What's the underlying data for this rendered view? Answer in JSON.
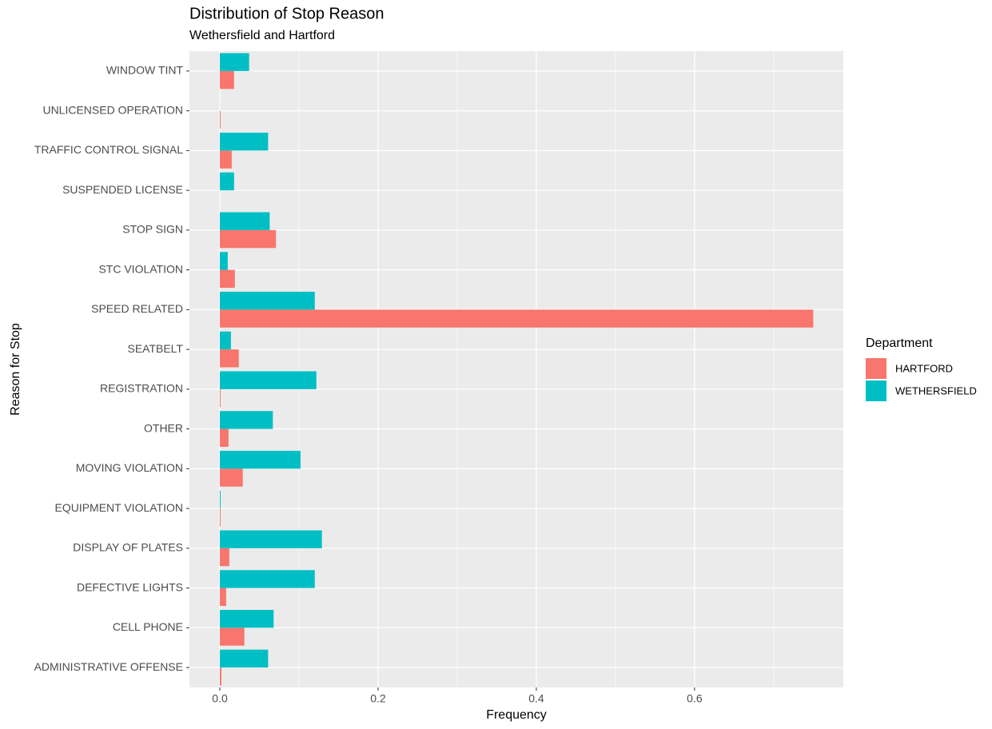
{
  "chart_data": {
    "type": "hbar",
    "title": "Distribution of Stop Reason",
    "subtitle": "Wethersfield and Hartford",
    "x_label": "Frequency",
    "y_label": "Reason for Stop",
    "legend_title": "Department",
    "legend_position": "right",
    "grid": true,
    "categories": [
      "WINDOW TINT",
      "UNLICENSED OPERATION",
      "TRAFFIC CONTROL SIGNAL",
      "SUSPENDED LICENSE",
      "STOP SIGN",
      "STC VIOLATION",
      "SPEED RELATED",
      "SEATBELT",
      "REGISTRATION",
      "OTHER",
      "MOVING VIOLATION",
      "EQUIPMENT VIOLATION",
      "DISPLAY OF PLATES",
      "DEFECTIVE LIGHTS",
      "CELL PHONE",
      "ADMINISTRATIVE OFFENSE"
    ],
    "series": [
      {
        "name": "HARTFORD",
        "color": "#F8766D",
        "values": [
          0.018,
          0.001,
          0.015,
          0,
          0.071,
          0.019,
          0.75,
          0.024,
          0.001,
          0.011,
          0.029,
          0.001,
          0.012,
          0.008,
          0.031,
          0.002
        ]
      },
      {
        "name": "WETHERSFIELD",
        "color": "#00BFC4",
        "values": [
          0.037,
          0,
          0.061,
          0.018,
          0.063,
          0.01,
          0.12,
          0.014,
          0.122,
          0.067,
          0.102,
          0.001,
          0.129,
          0.12,
          0.068,
          0.061
        ]
      }
    ],
    "xlim": [
      -0.0384,
      0.788
    ],
    "xticks": [
      {
        "value": 0,
        "label": "0.0"
      },
      0.2,
      0.4,
      0.6
    ]
  }
}
